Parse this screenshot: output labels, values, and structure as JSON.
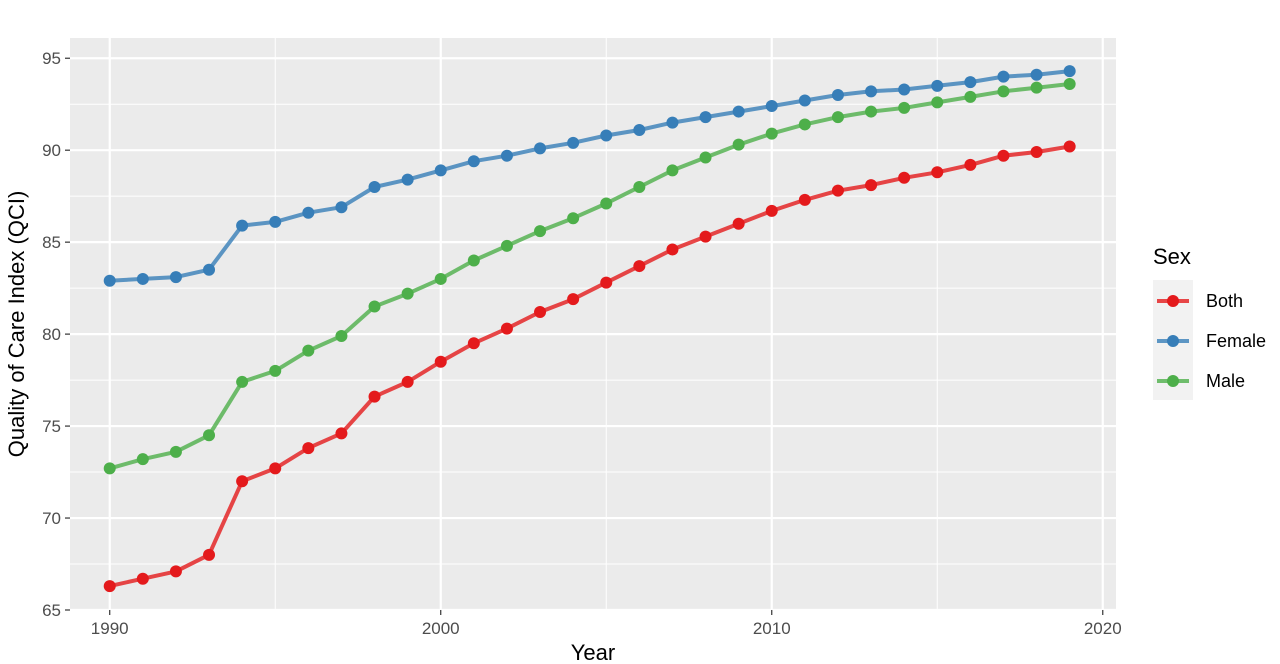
{
  "chart_data": {
    "type": "line",
    "title": "",
    "xlabel": "Year",
    "ylabel": "Quality of Care Index (QCI)",
    "xlim": [
      1988.8,
      2020.4
    ],
    "ylim": [
      65,
      96.1
    ],
    "x_ticks": [
      1990,
      2000,
      2010,
      2020
    ],
    "y_ticks": [
      65,
      70,
      75,
      80,
      85,
      90,
      95
    ],
    "grid": true,
    "legend": {
      "title": "Sex",
      "position": "right"
    },
    "x": [
      1990,
      1991,
      1992,
      1993,
      1994,
      1995,
      1996,
      1997,
      1998,
      1999,
      2000,
      2001,
      2002,
      2003,
      2004,
      2005,
      2006,
      2007,
      2008,
      2009,
      2010,
      2011,
      2012,
      2013,
      2014,
      2015,
      2016,
      2017,
      2018,
      2019
    ],
    "series": [
      {
        "name": "Both",
        "color": "#e41a1c",
        "values": [
          66.3,
          66.7,
          67.1,
          68.0,
          72.0,
          72.7,
          73.8,
          74.6,
          76.6,
          77.4,
          78.5,
          79.5,
          80.3,
          81.2,
          81.9,
          82.8,
          83.7,
          84.6,
          85.3,
          86.0,
          86.7,
          87.3,
          87.8,
          88.1,
          88.5,
          88.8,
          89.2,
          89.7,
          89.9,
          90.2
        ]
      },
      {
        "name": "Female",
        "color": "#377eb8",
        "values": [
          82.9,
          83.0,
          83.1,
          83.5,
          85.9,
          86.1,
          86.6,
          86.9,
          88.0,
          88.4,
          88.9,
          89.4,
          89.7,
          90.1,
          90.4,
          90.8,
          91.1,
          91.5,
          91.8,
          92.1,
          92.4,
          92.7,
          93.0,
          93.2,
          93.3,
          93.5,
          93.7,
          94.0,
          94.1,
          94.3
        ]
      },
      {
        "name": "Male",
        "color": "#4daf4a",
        "values": [
          72.7,
          73.2,
          73.6,
          74.5,
          77.4,
          78.0,
          79.1,
          79.9,
          81.5,
          82.2,
          83.0,
          84.0,
          84.8,
          85.6,
          86.3,
          87.1,
          88.0,
          88.9,
          89.6,
          90.3,
          90.9,
          91.4,
          91.8,
          92.1,
          92.3,
          92.6,
          92.9,
          93.2,
          93.4,
          93.6
        ]
      }
    ]
  }
}
